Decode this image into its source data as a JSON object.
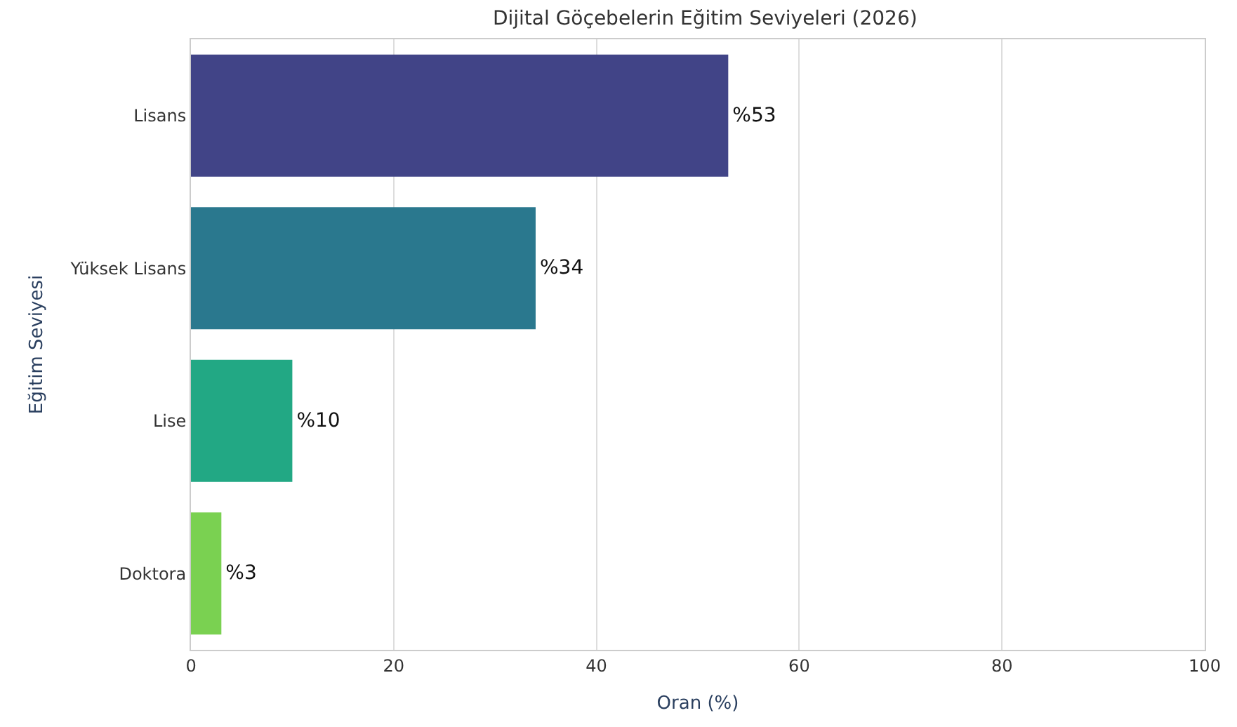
{
  "chart_data": {
    "type": "bar",
    "orientation": "horizontal",
    "title": "Dijital Göçebelerin Eğitim Seviyeleri (2026)",
    "xlabel": "Oran (%)",
    "ylabel": "Eğitim Seviyesi",
    "categories": [
      "Lisans",
      "Yüksek Lisans",
      "Lise",
      "Doktora"
    ],
    "values": [
      53,
      34,
      10,
      3
    ],
    "colors": [
      "#414487",
      "#2a788e",
      "#22a884",
      "#7ad151"
    ],
    "value_labels": [
      "%53",
      "%34",
      "%10",
      "%3"
    ],
    "xlim": [
      0,
      100
    ],
    "xticks": [
      0,
      20,
      40,
      60,
      80,
      100
    ],
    "grid": "x",
    "legend": false
  }
}
